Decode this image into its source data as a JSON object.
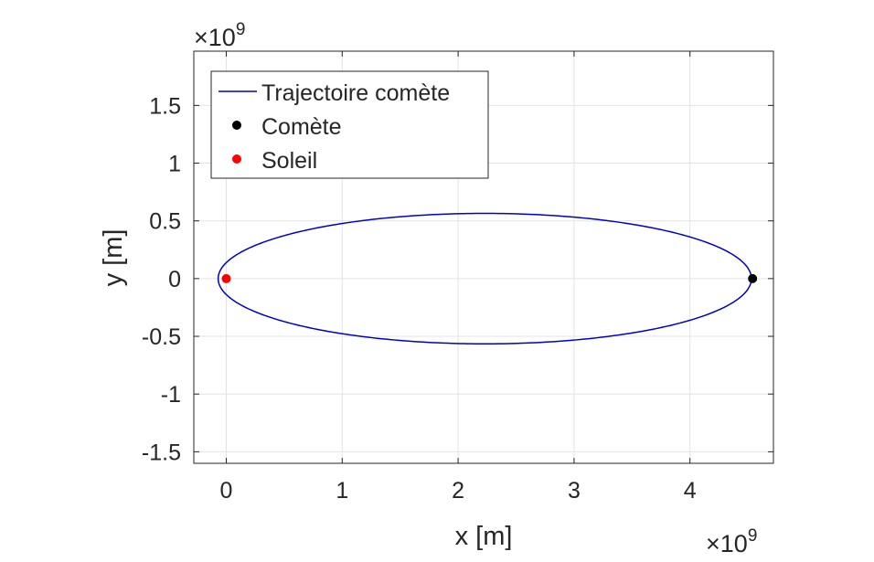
{
  "chart_data": {
    "type": "line",
    "xlabel": "x [m]",
    "ylabel": "y [m]",
    "x_exponent_label": "×10",
    "x_exponent_power": "9",
    "y_exponent_label": "×10",
    "y_exponent_power": "9",
    "xlim": [
      -0.28,
      4.72
    ],
    "ylim": [
      -1.6,
      1.97
    ],
    "x_ticks": [
      0,
      1,
      2,
      3,
      4
    ],
    "x_tick_labels": [
      "0",
      "1",
      "2",
      "3",
      "4"
    ],
    "y_ticks": [
      -1.5,
      -1,
      -0.5,
      0,
      0.5,
      1,
      1.5
    ],
    "y_tick_labels": [
      "-1.5",
      "-1",
      "-0.5",
      "0",
      "0.5",
      "1",
      "1.5"
    ],
    "grid": true,
    "legend_position": "top-left",
    "series": [
      {
        "name": "Trajectoire comète",
        "kind": "line",
        "color": "#0000cc",
        "ellipse": {
          "center_x": 2.23,
          "center_y": 0,
          "semi_major_axis": 2.3,
          "semi_minor_axis": 0.565
        }
      },
      {
        "name": "Comète",
        "kind": "marker",
        "color": "#000000",
        "x": 4.54,
        "y": 0
      },
      {
        "name": "Soleil",
        "kind": "marker",
        "color": "#ff0000",
        "x": 0,
        "y": 0
      }
    ]
  }
}
